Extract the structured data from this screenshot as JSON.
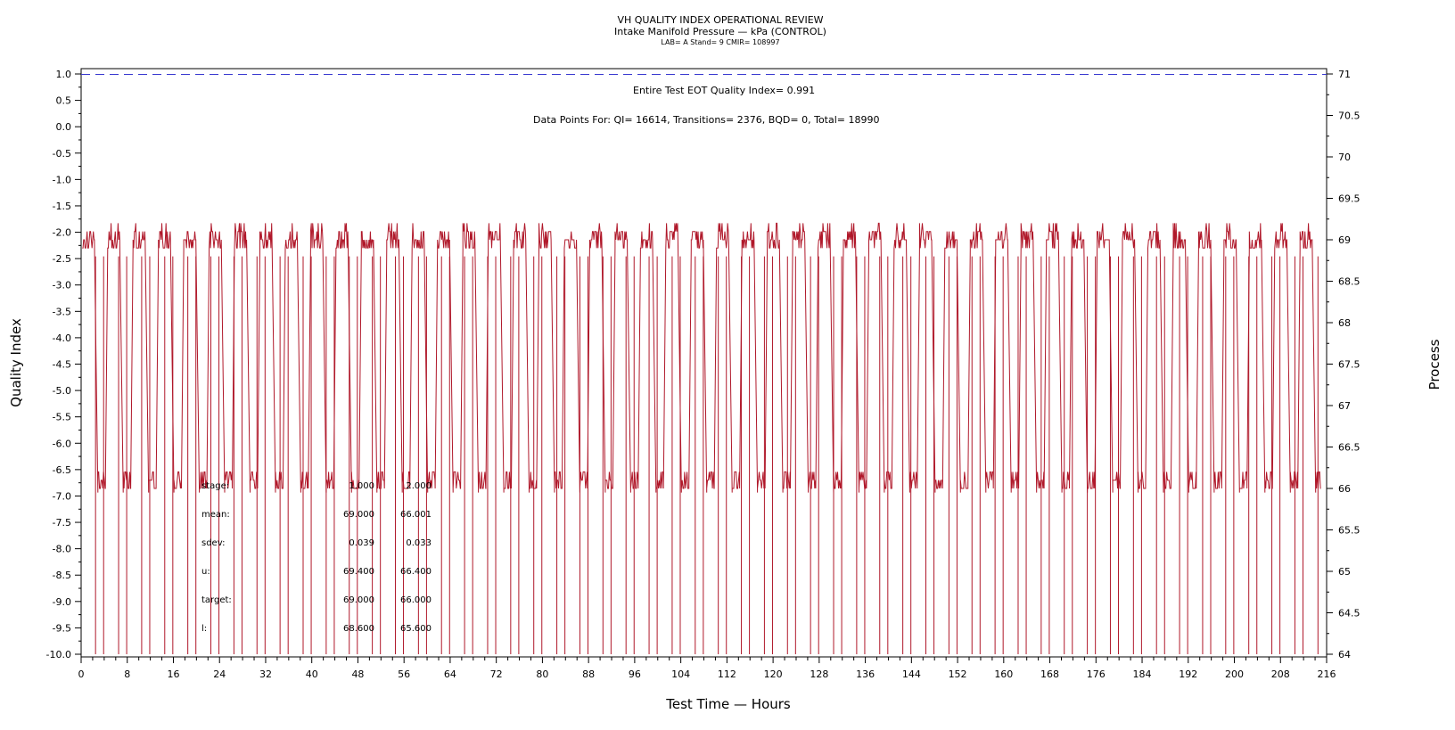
{
  "titles": {
    "line1": "VH QUALITY INDEX OPERATIONAL REVIEW",
    "line2": "Intake Manifold Pressure — kPa (CONTROL)",
    "line3": "LAB= A Stand= 9 CMIR= 108997"
  },
  "annotations": {
    "qi_line": "Entire Test EOT Quality Index=   0.991",
    "points_line": "Data Points For: QI= 16614, Transitions=  2376, BQD=     0, Total= 18990"
  },
  "stats_table": {
    "rows": [
      {
        "label": "stage:",
        "v1": "1.000",
        "v2": "2.000"
      },
      {
        "label": "mean:",
        "v1": "69.000",
        "v2": "66.001"
      },
      {
        "label": "sdev:",
        "v1": "0.039",
        "v2": "0.033"
      },
      {
        "label": "u:",
        "v1": "69.400",
        "v2": "66.400"
      },
      {
        "label": "target:",
        "v1": "69.000",
        "v2": "66.000"
      },
      {
        "label": "l:",
        "v1": "68.600",
        "v2": "65.600"
      }
    ]
  },
  "colors": {
    "series": "#b0182a",
    "qi_line": "#3a3ad0",
    "axis": "#000000"
  },
  "chart_data": {
    "type": "line",
    "xlabel": "Test Time — Hours",
    "ylabel": "Quality Index",
    "y2label": "Process",
    "xlim": [
      0,
      216
    ],
    "ylim": [
      -10.0,
      1.0
    ],
    "y2lim": [
      64,
      71
    ],
    "x_ticks": [
      "0",
      "8",
      "16",
      "24",
      "32",
      "40",
      "48",
      "56",
      "64",
      "72",
      "80",
      "88",
      "96",
      "104",
      "112",
      "120",
      "128",
      "136",
      "144",
      "152",
      "160",
      "168",
      "176",
      "184",
      "192",
      "200",
      "208",
      "216"
    ],
    "y_ticks": [
      "1.0",
      "0.5",
      "0.0",
      "-0.5",
      "-1.0",
      "-1.5",
      "-2.0",
      "-2.5",
      "-3.0",
      "-3.5",
      "-4.0",
      "-4.5",
      "-5.0",
      "-5.5",
      "-6.0",
      "-6.5",
      "-7.0",
      "-7.5",
      "-8.0",
      "-8.5",
      "-9.0",
      "-9.5",
      "-10.0"
    ],
    "y2_ticks": [
      "71",
      "70.5",
      "70",
      "69.5",
      "69",
      "68.5",
      "68",
      "67.5",
      "67",
      "66.5",
      "66",
      "65.5",
      "65",
      "64.5",
      "64"
    ],
    "grid": false,
    "series": [
      {
        "axis": "y2",
        "pattern": "cyclic",
        "cycle_hours": 4.0,
        "stage_values": [
          69.0,
          66.0
        ],
        "stage_hours": [
          2.1,
          1.9
        ],
        "noise_band": 0.1,
        "x_range": [
          0,
          215
        ]
      },
      {
        "name": "QI",
        "axis": "y",
        "x": [
          0,
          216
        ],
        "y": [
          0.991,
          0.991
        ]
      }
    ]
  }
}
